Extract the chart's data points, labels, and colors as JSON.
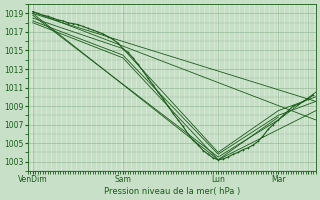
{
  "xlabel": "Pression niveau de la mer( hPa )",
  "bg_color": "#c8e0c8",
  "plot_bg_color": "#d4e8d4",
  "grid_color": "#99bb99",
  "line_color": "#1a5c1a",
  "yticks": [
    1003,
    1005,
    1007,
    1009,
    1011,
    1013,
    1015,
    1017,
    1019
  ],
  "ylim": [
    1002.0,
    1020.0
  ],
  "xlim": [
    0,
    115
  ],
  "xtick_positions": [
    2,
    38,
    76,
    100,
    112
  ],
  "xtick_labels": [
    "VenDim",
    "Sam",
    "Lun",
    "Mar",
    ""
  ],
  "lines": [
    {
      "x": [
        2,
        115
      ],
      "y": [
        1019.2,
        1007.5
      ]
    },
    {
      "x": [
        2,
        115
      ],
      "y": [
        1019.0,
        1009.5
      ]
    },
    {
      "x": [
        2,
        76,
        115
      ],
      "y": [
        1019.0,
        1003.2,
        1008.5
      ]
    },
    {
      "x": [
        2,
        76,
        100,
        115
      ],
      "y": [
        1018.8,
        1003.5,
        1007.5,
        1010.5
      ]
    },
    {
      "x": [
        2,
        38,
        76,
        100,
        115
      ],
      "y": [
        1018.5,
        1015.2,
        1004.0,
        1008.5,
        1010.0
      ]
    },
    {
      "x": [
        2,
        38,
        76,
        100,
        115
      ],
      "y": [
        1018.2,
        1014.5,
        1003.8,
        1008.0,
        1009.5
      ]
    },
    {
      "x": [
        2,
        38,
        76,
        100
      ],
      "y": [
        1018.0,
        1014.2,
        1003.2,
        1007.8
      ]
    }
  ],
  "detailed_points": [
    [
      2,
      1019.2
    ],
    [
      4,
      1019.0
    ],
    [
      6,
      1018.8
    ],
    [
      8,
      1018.7
    ],
    [
      10,
      1018.5
    ],
    [
      12,
      1018.3
    ],
    [
      14,
      1018.2
    ],
    [
      16,
      1018.0
    ],
    [
      18,
      1017.9
    ],
    [
      20,
      1017.8
    ],
    [
      22,
      1017.6
    ],
    [
      24,
      1017.4
    ],
    [
      26,
      1017.2
    ],
    [
      28,
      1017.0
    ],
    [
      30,
      1016.8
    ],
    [
      32,
      1016.5
    ],
    [
      34,
      1016.2
    ],
    [
      36,
      1015.8
    ],
    [
      38,
      1015.2
    ],
    [
      40,
      1014.8
    ],
    [
      42,
      1014.2
    ],
    [
      44,
      1013.5
    ],
    [
      46,
      1012.8
    ],
    [
      48,
      1012.0
    ],
    [
      50,
      1011.3
    ],
    [
      52,
      1010.5
    ],
    [
      54,
      1009.8
    ],
    [
      56,
      1009.0
    ],
    [
      58,
      1008.2
    ],
    [
      60,
      1007.5
    ],
    [
      62,
      1006.8
    ],
    [
      64,
      1006.0
    ],
    [
      66,
      1005.3
    ],
    [
      68,
      1004.8
    ],
    [
      70,
      1004.2
    ],
    [
      72,
      1003.8
    ],
    [
      74,
      1003.4
    ],
    [
      76,
      1003.2
    ],
    [
      78,
      1003.3
    ],
    [
      80,
      1003.5
    ],
    [
      82,
      1003.8
    ],
    [
      84,
      1004.0
    ],
    [
      86,
      1004.3
    ],
    [
      88,
      1004.5
    ],
    [
      90,
      1004.8
    ],
    [
      92,
      1005.2
    ],
    [
      94,
      1005.8
    ],
    [
      96,
      1006.5
    ],
    [
      98,
      1007.0
    ],
    [
      100,
      1007.5
    ],
    [
      102,
      1008.0
    ],
    [
      104,
      1008.5
    ],
    [
      106,
      1009.0
    ],
    [
      108,
      1009.2
    ],
    [
      110,
      1009.5
    ],
    [
      112,
      1009.8
    ],
    [
      114,
      1010.2
    ]
  ]
}
